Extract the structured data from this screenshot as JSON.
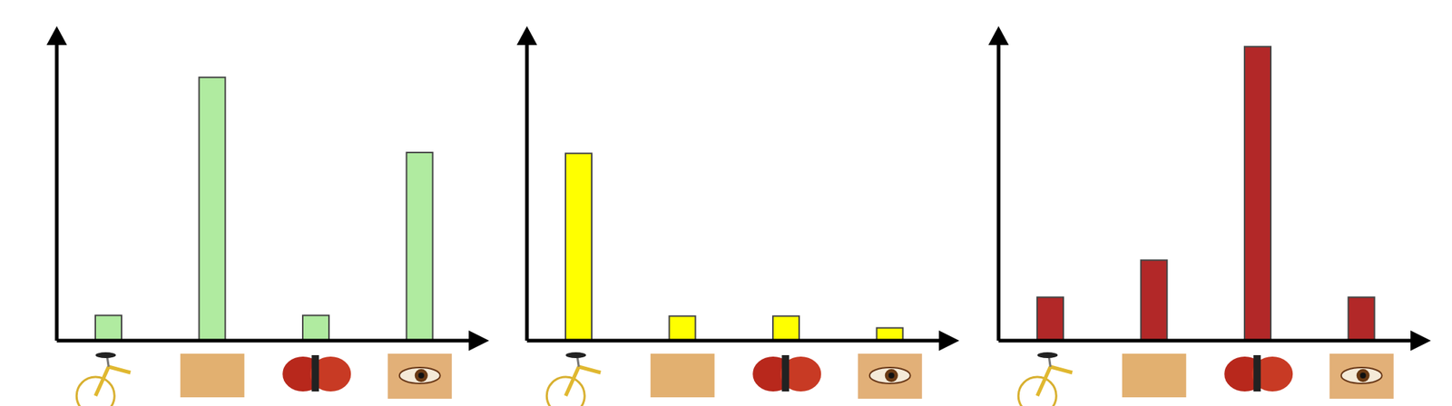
{
  "chart_data": [
    {
      "type": "bar",
      "categories": [
        null,
        null,
        null,
        null
      ],
      "values": [
        28,
        291,
        28,
        208
      ],
      "color": "#b0eba0",
      "ylim": [
        0,
        330
      ],
      "tick_labels": false
    },
    {
      "type": "bar",
      "categories": [
        null,
        null,
        null,
        null
      ],
      "values": [
        207,
        27,
        27,
        14
      ],
      "color": "#ffff00",
      "ylim": [
        0,
        330
      ],
      "tick_labels": false
    },
    {
      "type": "bar",
      "categories": [
        null,
        null,
        null,
        null
      ],
      "values": [
        48,
        89,
        325,
        48
      ],
      "color": "#b22828",
      "ylim": [
        0,
        330
      ],
      "tick_labels": false
    }
  ]
}
